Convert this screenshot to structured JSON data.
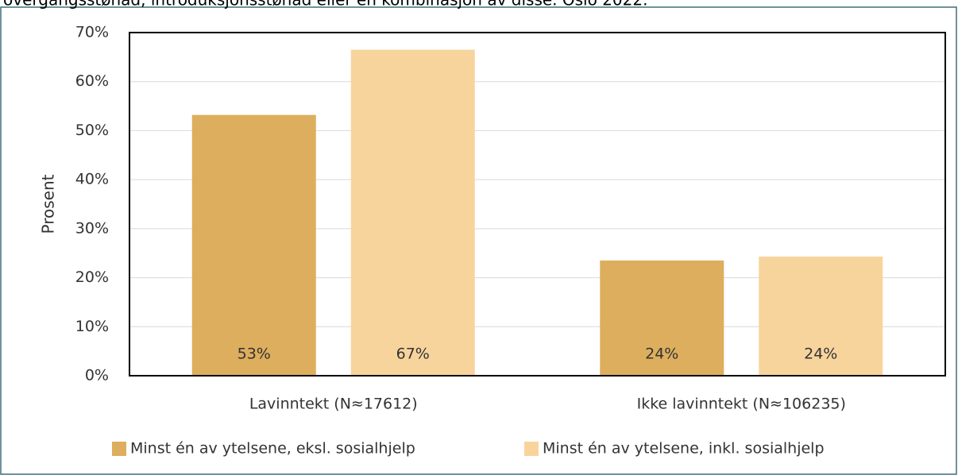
{
  "chart_data": {
    "type": "bar",
    "title": "overgangsstønad, introduksjonsstønad eller en kombinasjon av disse. Oslo 2022.",
    "ylabel": "Prosent",
    "categories": [
      "Lavinntekt (N≈17612)",
      "Ikke lavinntekt (N≈106235)"
    ],
    "series": [
      {
        "name": "Minst én av ytelsene, eksl. sosialhjelp",
        "color": "#ddae5d",
        "values": [
          53.2,
          23.5
        ],
        "value_labels": [
          "53%",
          "24%"
        ]
      },
      {
        "name": "Minst én av ytelsene, inkl. sosialhjelp",
        "color": "#f8d49d",
        "values": [
          66.5,
          24.3
        ],
        "value_labels": [
          "67%",
          "24%"
        ]
      }
    ],
    "ylim": [
      0,
      70
    ],
    "yticks": [
      {
        "value": 0,
        "label": "0%"
      },
      {
        "value": 10,
        "label": "10%"
      },
      {
        "value": 20,
        "label": "20%"
      },
      {
        "value": 30,
        "label": "30%"
      },
      {
        "value": 40,
        "label": "40%"
      },
      {
        "value": 50,
        "label": "50%"
      },
      {
        "value": 60,
        "label": "60%"
      },
      {
        "value": 70,
        "label": "70%"
      }
    ],
    "grid": true,
    "legend": "bottom"
  }
}
